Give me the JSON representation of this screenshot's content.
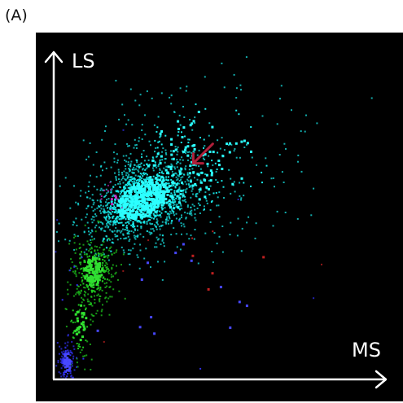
{
  "panel_label": "(A)",
  "chart_data": {
    "type": "scatter",
    "title": "",
    "xlabel": "MS",
    "ylabel": "LS",
    "xlim": [
      0,
      100
    ],
    "ylim": [
      0,
      100
    ],
    "grid": false,
    "legend": "none",
    "background": "#000000",
    "axis_color": "#ffffff",
    "arrow_color": "#b0203a",
    "arrow_tip": {
      "x": 42,
      "y": 66
    },
    "series": [
      {
        "color": "#18e6e6",
        "core_color": "#2cffff",
        "clusters": [
          {
            "cx": 27,
            "cy": 55,
            "sx": 9.5,
            "sy": 5.8,
            "rot": 30,
            "count": 1500
          },
          {
            "cx": 38,
            "cy": 62,
            "sx": 12,
            "sy": 11,
            "rot": 30,
            "count": 240
          },
          {
            "cx": 46,
            "cy": 70,
            "sx": 17,
            "sy": 14,
            "rot": 0,
            "count": 130
          }
        ]
      },
      {
        "color": "#1fc81f",
        "core_color": "#30e030",
        "clusters": [
          {
            "cx": 12,
            "cy": 33,
            "sx": 3.2,
            "sy": 5.2,
            "rot": 0,
            "count": 350
          },
          {
            "cx": 8,
            "cy": 17,
            "sx": 2.2,
            "sy": 6.5,
            "rot": 0,
            "count": 90
          }
        ]
      },
      {
        "color": "#3030ee",
        "core_color": "#4848ff",
        "clusters": [
          {
            "cx": 4,
            "cy": 5,
            "sx": 1.3,
            "sy": 3.5,
            "rot": 0,
            "count": 120
          },
          {
            "cx": 35,
            "cy": 25,
            "sx": 30,
            "sy": 22,
            "rot": 0,
            "count": 35
          }
        ]
      },
      {
        "color": "#c02020",
        "core_color": "#c02020",
        "clusters": [
          {
            "cx": 55,
            "cy": 35,
            "sx": 20,
            "sy": 12,
            "rot": 0,
            "count": 10
          }
        ]
      },
      {
        "color": "#a020a0",
        "core_color": "#c030c0",
        "clusters": [
          {
            "cx": 17,
            "cy": 55,
            "sx": 2.5,
            "sy": 3,
            "rot": 0,
            "count": 14
          }
        ]
      }
    ]
  }
}
